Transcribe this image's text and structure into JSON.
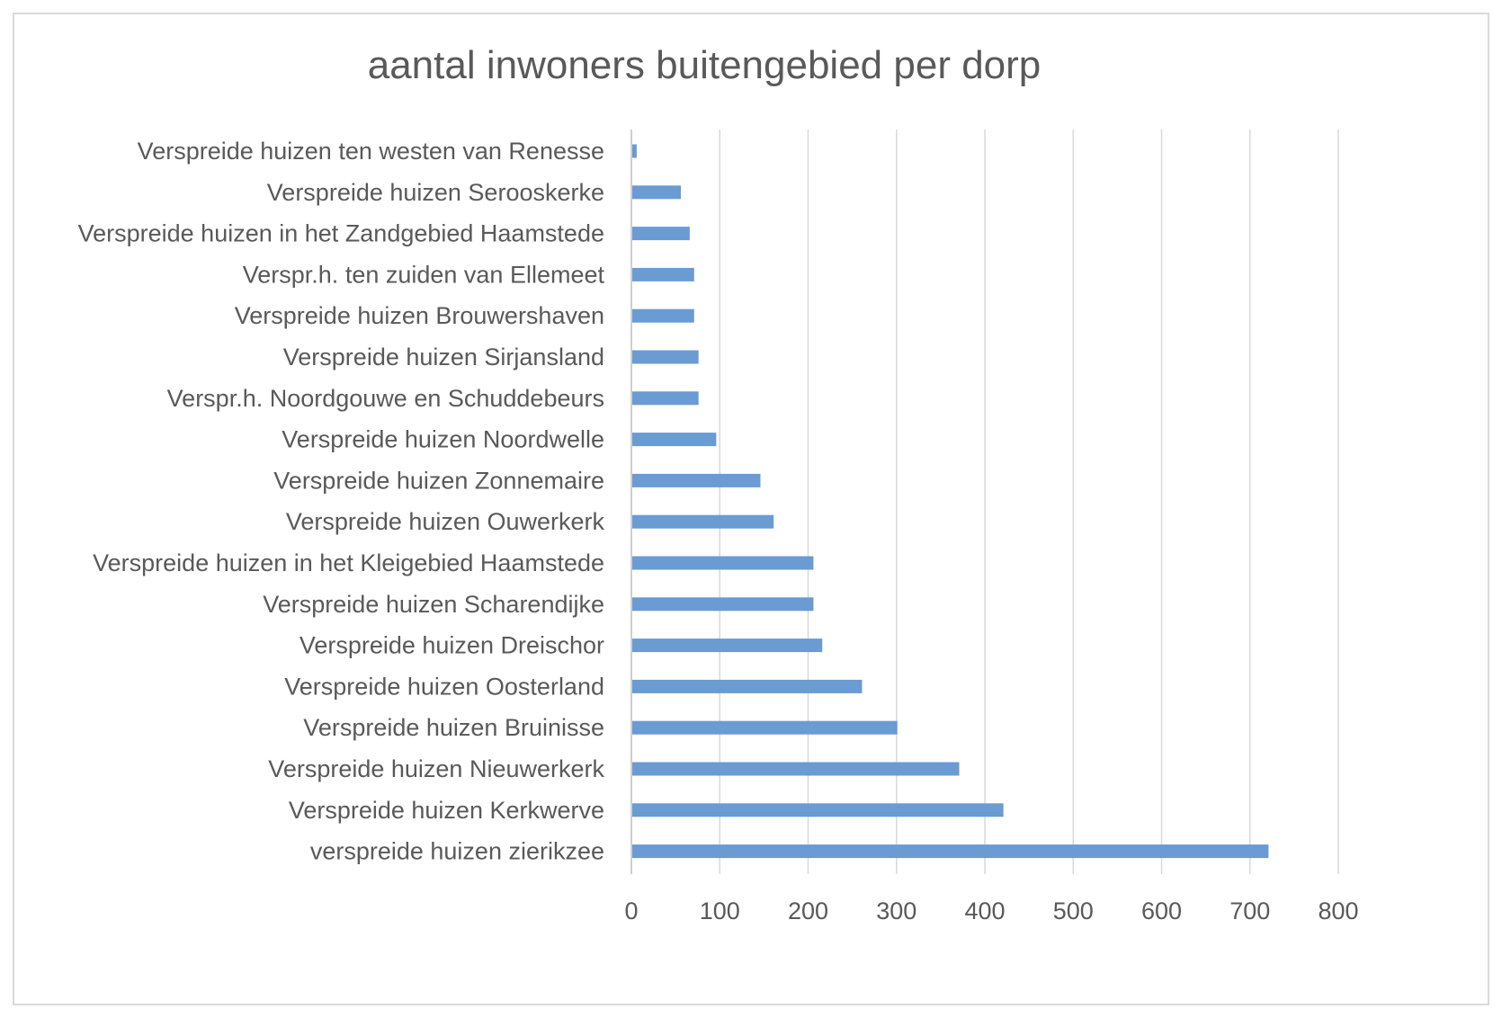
{
  "chart_data": {
    "type": "bar",
    "orientation": "horizontal",
    "title": "aantal inwoners buitengebied per dorp",
    "xlabel": "",
    "ylabel": "",
    "categories": [
      "Verspreide huizen ten westen van Renesse",
      "Verspreide huizen Serooskerke",
      "Verspreide huizen in het Zandgebied Haamstede",
      "Verspr.h. ten zuiden van Ellemeet",
      "Verspreide huizen Brouwershaven",
      "Verspreide huizen Sirjansland",
      "Verspr.h. Noordgouwe en Schuddebeurs",
      "Verspreide huizen Noordwelle",
      "Verspreide huizen Zonnemaire",
      "Verspreide huizen Ouwerkerk",
      "Verspreide huizen in het Kleigebied Haamstede",
      "Verspreide huizen Scharendijke",
      "Verspreide huizen Dreischor",
      "Verspreide huizen Oosterland",
      "Verspreide huizen Bruinisse",
      "Verspreide huizen Nieuwerkerk",
      "Verspreide huizen Kerkwerve",
      "verspreide huizen zierikzee"
    ],
    "values": [
      5,
      55,
      65,
      70,
      70,
      75,
      75,
      95,
      145,
      160,
      205,
      205,
      215,
      260,
      300,
      370,
      420,
      720
    ],
    "xlim": [
      0,
      800
    ],
    "ticks": [
      0,
      100,
      200,
      300,
      400,
      500,
      600,
      700,
      800
    ],
    "tick_labels": [
      "0",
      "100",
      "200",
      "300",
      "400",
      "500",
      "600",
      "700",
      "800"
    ],
    "grid": true,
    "legend": "none",
    "bar_color": "#6a9bd3"
  }
}
